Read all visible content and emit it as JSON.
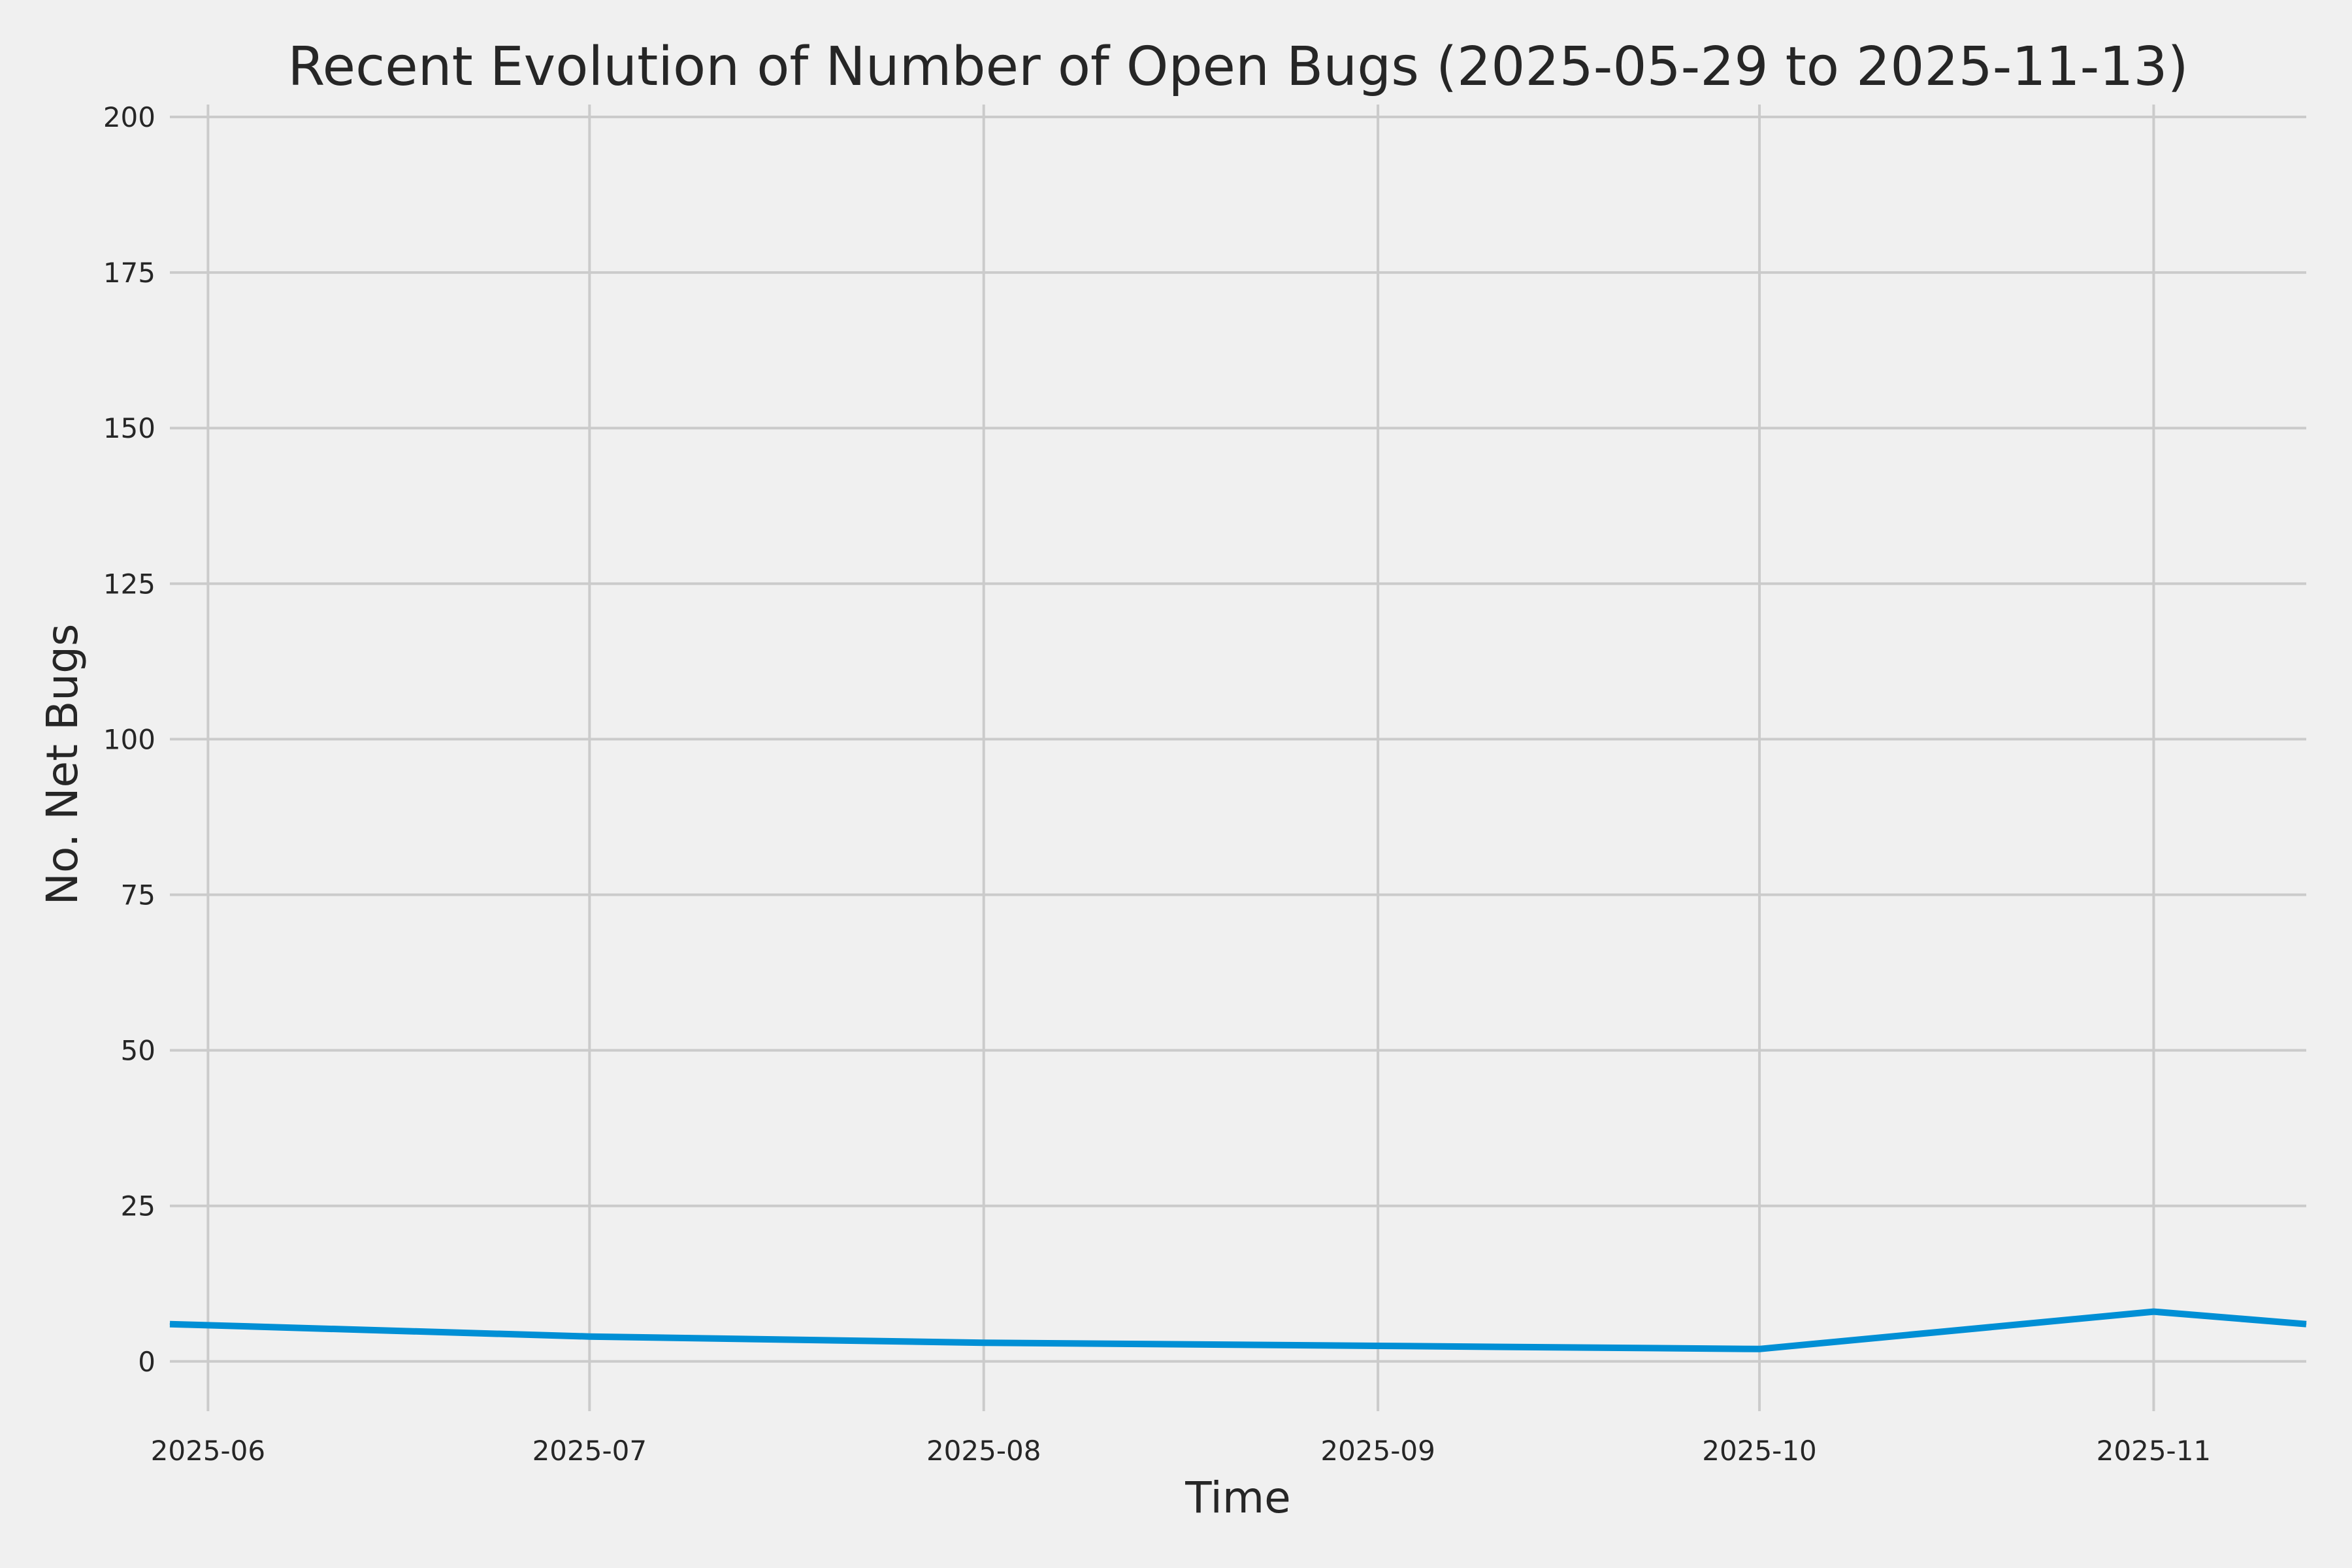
{
  "chart_data": {
    "type": "line",
    "title": "Recent Evolution of Number of Open Bugs (2025-05-29 to 2025-11-13)",
    "xlabel": "Time",
    "ylabel": "No. Net Bugs",
    "x_scale": "date",
    "xlim": [
      "2025-05-29",
      "2025-11-13"
    ],
    "ylim": [
      -8,
      202
    ],
    "x_ticks": [
      "2025-06-01",
      "2025-07-01",
      "2025-08-01",
      "2025-09-01",
      "2025-10-01",
      "2025-11-01"
    ],
    "x_tick_labels": [
      "2025-06",
      "2025-07",
      "2025-08",
      "2025-09",
      "2025-10",
      "2025-11"
    ],
    "y_ticks": [
      0,
      25,
      50,
      75,
      100,
      125,
      150,
      175,
      200
    ],
    "grid": true,
    "series": [
      {
        "color": "#008fd5",
        "points": [
          {
            "x": "2025-05-29",
            "y": 6
          },
          {
            "x": "2025-07-01",
            "y": 4
          },
          {
            "x": "2025-08-01",
            "y": 3
          },
          {
            "x": "2025-09-01",
            "y": 2.5
          },
          {
            "x": "2025-10-01",
            "y": 2
          },
          {
            "x": "2025-11-01",
            "y": 8
          },
          {
            "x": "2025-11-13",
            "y": 6
          }
        ]
      }
    ]
  }
}
